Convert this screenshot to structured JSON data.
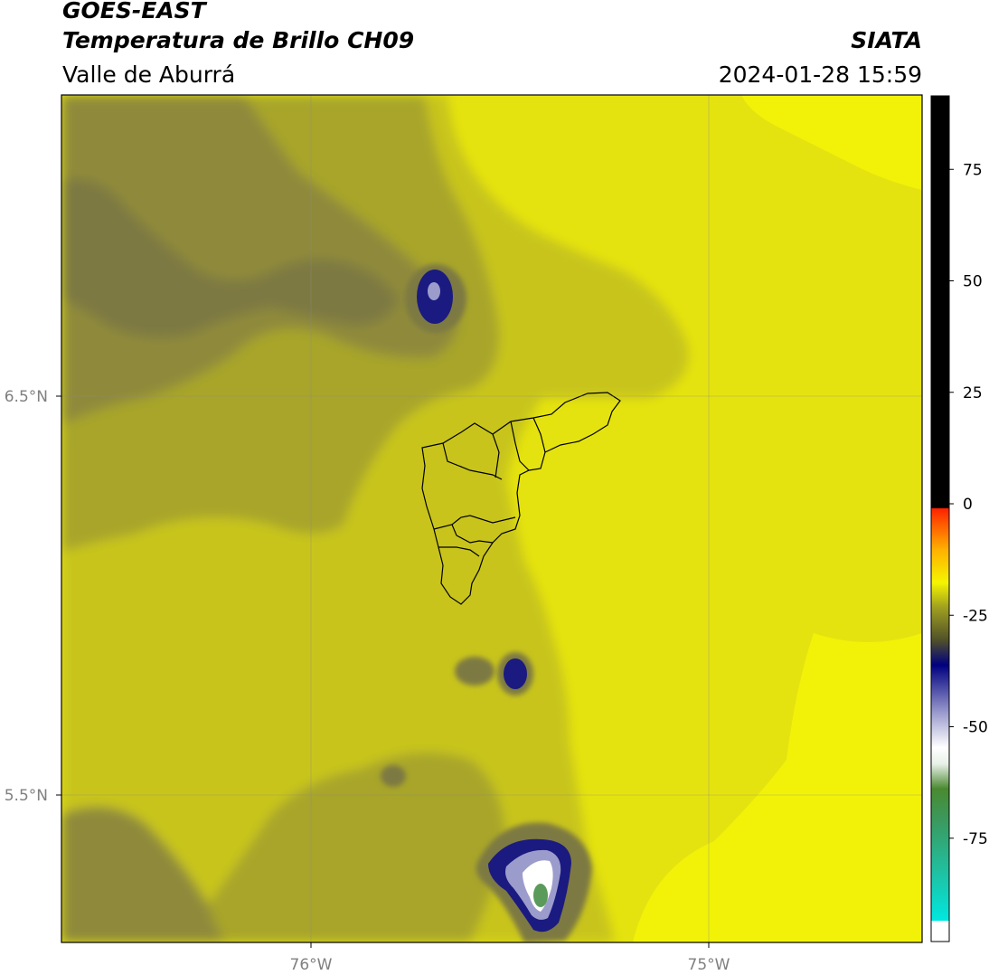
{
  "header": {
    "satellite": "GOES-EAST",
    "product": "Temperatura de Brillo CH09",
    "region": "Valle de Aburrá",
    "agency": "SIATA",
    "datetime": "2024-01-28 15:59"
  },
  "map": {
    "lon_ticks": [
      {
        "value": -76.0,
        "label": "76°W"
      },
      {
        "value": -75.0,
        "label": "75°W"
      }
    ],
    "lat_ticks": [
      {
        "value": 6.5,
        "label": "6.5°N"
      },
      {
        "value": 5.5,
        "label": "5.5°N"
      }
    ],
    "colors": {
      "warm_yellow": "#e5e30f",
      "bright_yellow": "#f2f208",
      "olive_light": "#c8c41b",
      "olive": "#a8a52a",
      "olive_dark": "#8f8a3a",
      "grey_olive": "#7d7943",
      "navy": "#1a1a80",
      "lavender": "#9c9ccc",
      "white": "#ffffff",
      "green": "#5a9a5a"
    }
  },
  "colorbar": {
    "ticks": [
      "75",
      "50",
      "25",
      "0",
      "-25",
      "-50",
      "-75"
    ],
    "tick_values": [
      75,
      50,
      25,
      0,
      -25,
      -50,
      -75
    ],
    "range": [
      -95,
      92
    ]
  }
}
